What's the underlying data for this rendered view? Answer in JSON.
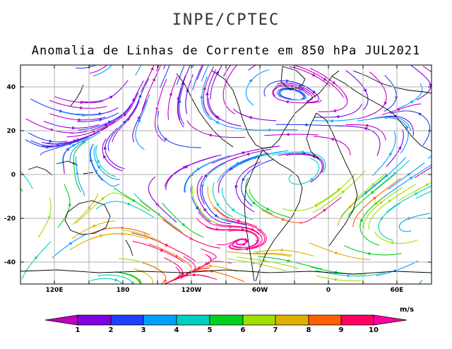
{
  "header": {
    "organization": "INPE/CPTEC",
    "title": "Anomalia de Linhas de Corrente em 850 hPa JUL2021"
  },
  "map": {
    "lat_ticks": [
      "40",
      "20",
      "0",
      "-20",
      "-40"
    ],
    "lon_ticks": [
      "120E",
      "180",
      "120W",
      "60W",
      "0",
      "60E"
    ],
    "grid": true,
    "gridline_color": "#b0b0b0",
    "coastline_color": "#000000",
    "background_color": "#ffffff"
  },
  "colorbar": {
    "unit": "m/s",
    "levels": [
      "1",
      "2",
      "3",
      "4",
      "5",
      "6",
      "7",
      "8",
      "9",
      "10"
    ],
    "colors": [
      "#c000c0",
      "#8000e0",
      "#2040ff",
      "#00a0ff",
      "#00d0c0",
      "#00d020",
      "#a0e000",
      "#e0b000",
      "#ff6000",
      "#ff0060",
      "#ff00a0"
    ]
  }
}
